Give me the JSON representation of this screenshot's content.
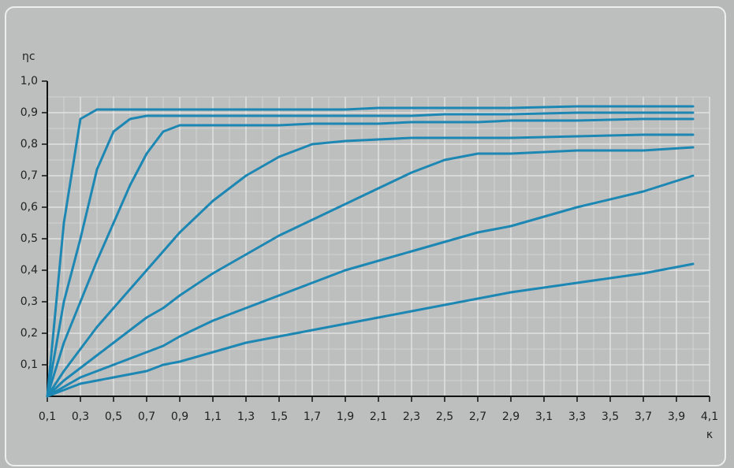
{
  "chart_data": {
    "type": "line",
    "y_label": "ηc",
    "x_label": "κ",
    "x": [
      0.1,
      0.2,
      0.3,
      0.4,
      0.5,
      0.6,
      0.7,
      0.8,
      0.9,
      1.1,
      1.3,
      1.5,
      1.7,
      1.9,
      2.1,
      2.3,
      2.5,
      2.7,
      2.9,
      3.3,
      3.7,
      4.0
    ],
    "series": [
      {
        "color": "#1c87b3",
        "values": [
          0,
          0.55,
          0.88,
          0.91,
          0.91,
          0.91,
          0.91,
          0.91,
          0.91,
          0.91,
          0.91,
          0.91,
          0.91,
          0.91,
          0.915,
          0.915,
          0.915,
          0.915,
          0.915,
          0.92,
          0.92,
          0.92
        ]
      },
      {
        "color": "#1c87b3",
        "values": [
          0,
          0.3,
          0.5,
          0.72,
          0.84,
          0.88,
          0.89,
          0.89,
          0.89,
          0.89,
          0.89,
          0.89,
          0.89,
          0.89,
          0.89,
          0.89,
          0.895,
          0.895,
          0.895,
          0.9,
          0.9,
          0.9
        ]
      },
      {
        "color": "#1c87b3",
        "values": [
          0,
          0.17,
          0.3,
          0.43,
          0.55,
          0.67,
          0.77,
          0.84,
          0.86,
          0.86,
          0.86,
          0.86,
          0.865,
          0.865,
          0.865,
          0.87,
          0.87,
          0.87,
          0.875,
          0.875,
          0.88,
          0.88
        ]
      },
      {
        "color": "#1c87b3",
        "values": [
          0,
          0.08,
          0.15,
          0.22,
          0.28,
          0.34,
          0.4,
          0.46,
          0.52,
          0.62,
          0.7,
          0.76,
          0.8,
          0.81,
          0.815,
          0.82,
          0.82,
          0.82,
          0.82,
          0.825,
          0.83,
          0.83
        ]
      },
      {
        "color": "#1c87b3",
        "values": [
          0,
          0.05,
          0.09,
          0.13,
          0.17,
          0.21,
          0.25,
          0.28,
          0.32,
          0.39,
          0.45,
          0.51,
          0.56,
          0.61,
          0.66,
          0.71,
          0.75,
          0.77,
          0.77,
          0.78,
          0.78,
          0.79
        ]
      },
      {
        "color": "#1c87b3",
        "values": [
          0,
          0.03,
          0.06,
          0.08,
          0.1,
          0.12,
          0.14,
          0.16,
          0.19,
          0.24,
          0.28,
          0.32,
          0.36,
          0.4,
          0.43,
          0.46,
          0.49,
          0.52,
          0.54,
          0.6,
          0.65,
          0.7
        ]
      },
      {
        "color": "#1c87b3",
        "values": [
          0,
          0.02,
          0.04,
          0.05,
          0.06,
          0.07,
          0.08,
          0.1,
          0.11,
          0.14,
          0.17,
          0.19,
          0.21,
          0.23,
          0.25,
          0.27,
          0.29,
          0.31,
          0.33,
          0.36,
          0.39,
          0.42
        ]
      }
    ],
    "xlim": [
      0.1,
      4.1
    ],
    "ylim": [
      0,
      1.0
    ],
    "xticks": [
      {
        "value": 0.1,
        "label": "0,1"
      },
      {
        "value": 0.3,
        "label": "0,3"
      },
      {
        "value": 0.5,
        "label": "0,5"
      },
      {
        "value": 0.7,
        "label": "0,7"
      },
      {
        "value": 0.9,
        "label": "0,9"
      },
      {
        "value": 1.1,
        "label": "1,1"
      },
      {
        "value": 1.3,
        "label": "1,3"
      },
      {
        "value": 1.5,
        "label": "1,5"
      },
      {
        "value": 1.7,
        "label": "1,7"
      },
      {
        "value": 1.9,
        "label": "1,9"
      },
      {
        "value": 2.1,
        "label": "2,1"
      },
      {
        "value": 2.3,
        "label": "2,3"
      },
      {
        "value": 2.5,
        "label": "2,5"
      },
      {
        "value": 2.7,
        "label": "2,7"
      },
      {
        "value": 2.9,
        "label": "2,9"
      },
      {
        "value": 3.1,
        "label": "3,1"
      },
      {
        "value": 3.3,
        "label": "3,3"
      },
      {
        "value": 3.5,
        "label": "3,5"
      },
      {
        "value": 3.7,
        "label": "3,7"
      },
      {
        "value": 3.9,
        "label": "3,9"
      },
      {
        "value": 4.1,
        "label": "4,1"
      }
    ],
    "yticks": [
      {
        "value": 0.1,
        "label": "0,1"
      },
      {
        "value": 0.2,
        "label": "0,2"
      },
      {
        "value": 0.3,
        "label": "0,3"
      },
      {
        "value": 0.4,
        "label": "0,4"
      },
      {
        "value": 0.5,
        "label": "0,5"
      },
      {
        "value": 0.6,
        "label": "0,6"
      },
      {
        "value": 0.7,
        "label": "0,7"
      },
      {
        "value": 0.8,
        "label": "0,8"
      },
      {
        "value": 0.9,
        "label": "0,9"
      },
      {
        "value": 1.0,
        "label": "1,0"
      }
    ],
    "grid": true
  }
}
